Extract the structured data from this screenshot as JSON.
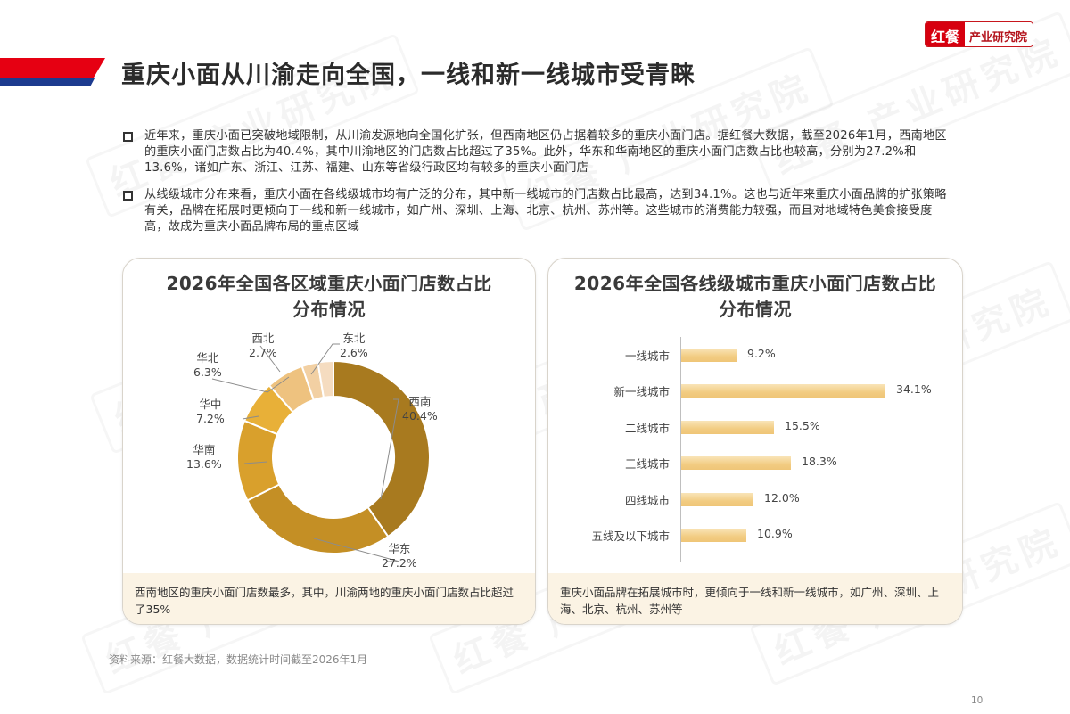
{
  "header": {
    "title": "重庆小面从川渝走向全国，一线和新一线城市受青睐",
    "logo_brand": "红餐",
    "logo_sub": "产业研究院",
    "colors": {
      "red": "#e60012",
      "blue": "#1d3b8f"
    }
  },
  "watermark_text": "红餐 产业研究院",
  "bullets": [
    {
      "text": "近年来，重庆小面已突破地域限制，从川渝发源地向全国化扩张，但西南地区仍占据着较多的重庆小面门店。据红餐大数据，截至2026年1月，西南地区的重庆小面门店数占比为40.4%，其中川渝地区的门店数占比超过了35%。此外，华东和华南地区的重庆小面门店数占比也较高，分别为27.2%和13.6%，诸如广东、浙江、江苏、福建、山东等省级行政区均有较多的重庆小面门店"
    },
    {
      "text": "从线级城市分布来看，重庆小面在各线级城市均有广泛的分布，其中新一线城市的门店数占比最高，达到34.1%。这也与近年来重庆小面品牌的扩张策略有关，品牌在拓展时更倾向于一线和新一线城市，如广州、深圳、上海、北京、杭州、苏州等。这些城市的消费能力较强，而且对地域特色美食接受度高，故成为重庆小面品牌布局的重点区域"
    }
  ],
  "left_card": {
    "title_line1": "2026年全国各区域重庆小面门店数占比",
    "title_line2": "分布情况",
    "note": "西南地区的重庆小面门店数最多，其中，川渝两地的重庆小面门店数占比超过了35%"
  },
  "right_card": {
    "title_line1": "2026年全国各线级城市重庆小面门店数占比",
    "title_line2": "分布情况",
    "note": "重庆小面品牌在拓展城市时，更倾向于一线和新一线城市，如广州、深圳、上海、北京、杭州、苏州等"
  },
  "chart_data": [
    {
      "type": "pie",
      "variant": "donut",
      "title": "2026年全国各区域重庆小面门店数占比分布情况",
      "categories": [
        "西南",
        "华东",
        "华南",
        "华中",
        "华北",
        "西北",
        "东北"
      ],
      "values": [
        40.4,
        27.2,
        13.6,
        7.2,
        6.3,
        2.7,
        2.6
      ],
      "value_labels": [
        "40.4%",
        "27.2%",
        "13.6%",
        "7.2%",
        "6.3%",
        "2.7%",
        "2.6%"
      ],
      "colors": [
        "#a87a1f",
        "#c48f25",
        "#d9a02c",
        "#e8b038",
        "#eec27f",
        "#f2d0a3",
        "#f5dcc0"
      ],
      "unit": "%",
      "legend": "none (leader-line labels)"
    },
    {
      "type": "bar",
      "orientation": "horizontal",
      "title": "2026年全国各线级城市重庆小面门店数占比分布情况",
      "categories": [
        "一线城市",
        "新一线城市",
        "二线城市",
        "三线城市",
        "四线城市",
        "五线及以下城市"
      ],
      "values": [
        9.2,
        34.1,
        15.5,
        18.3,
        12.0,
        10.9
      ],
      "value_labels": [
        "9.2%",
        "34.1%",
        "15.5%",
        "18.3%",
        "12.0%",
        "10.9%"
      ],
      "xlabel": "",
      "ylabel": "",
      "grid": false,
      "bar_color": "#f2cc82",
      "unit": "%"
    }
  ],
  "footer": {
    "source": "资料来源：红餐大数据，数据统计时间截至2026年1月",
    "page_number": "10"
  }
}
